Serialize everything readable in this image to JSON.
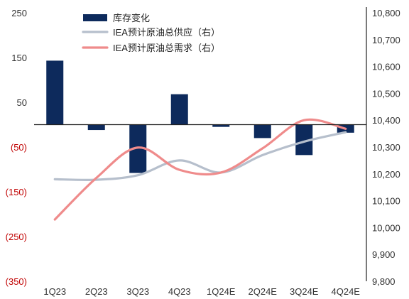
{
  "chart_data": {
    "type": "bar-line-combo",
    "categories": [
      "1Q23",
      "2Q23",
      "3Q23",
      "4Q23",
      "1Q24E",
      "2Q24E",
      "3Q24E",
      "4Q24E"
    ],
    "y_left": {
      "range": [
        -350,
        250
      ],
      "ticks": [
        250,
        150,
        50,
        -50,
        -150,
        -250,
        -350
      ],
      "tick_labels": [
        "250",
        "150",
        "50",
        "(50)",
        "(150)",
        "(250)",
        "(350)"
      ],
      "negative_color": "#c00000",
      "positive_color": "#333333"
    },
    "y_right": {
      "range": [
        9800,
        10800
      ],
      "ticks": [
        10800,
        10700,
        10600,
        10500,
        10400,
        10300,
        10200,
        10100,
        10000,
        9900,
        9800
      ],
      "tick_labels": [
        "10,800",
        "10,700",
        "10,600",
        "10,500",
        "10,400",
        "10,300",
        "10,200",
        "10,100",
        "10,000",
        "9,900",
        "9,800"
      ]
    },
    "legend": {
      "placement": "top-center"
    },
    "grid": false,
    "series": [
      {
        "name": "库存变化",
        "kind": "bar",
        "axis": "left",
        "color": "#0d2a5c",
        "values": [
          143,
          -12,
          -108,
          68,
          -5,
          -30,
          -68,
          -18
        ]
      },
      {
        "name": "IEA预计原油总供应（右）",
        "kind": "line",
        "axis": "right",
        "color": "#b6bfcc",
        "values": [
          10180,
          10178,
          10195,
          10250,
          10205,
          10270,
          10320,
          10355
        ]
      },
      {
        "name": "IEA预计原油总需求（右）",
        "kind": "line",
        "axis": "right",
        "color": "#ef8b8b",
        "values": [
          10030,
          10185,
          10298,
          10215,
          10205,
          10295,
          10400,
          10368
        ]
      }
    ]
  }
}
